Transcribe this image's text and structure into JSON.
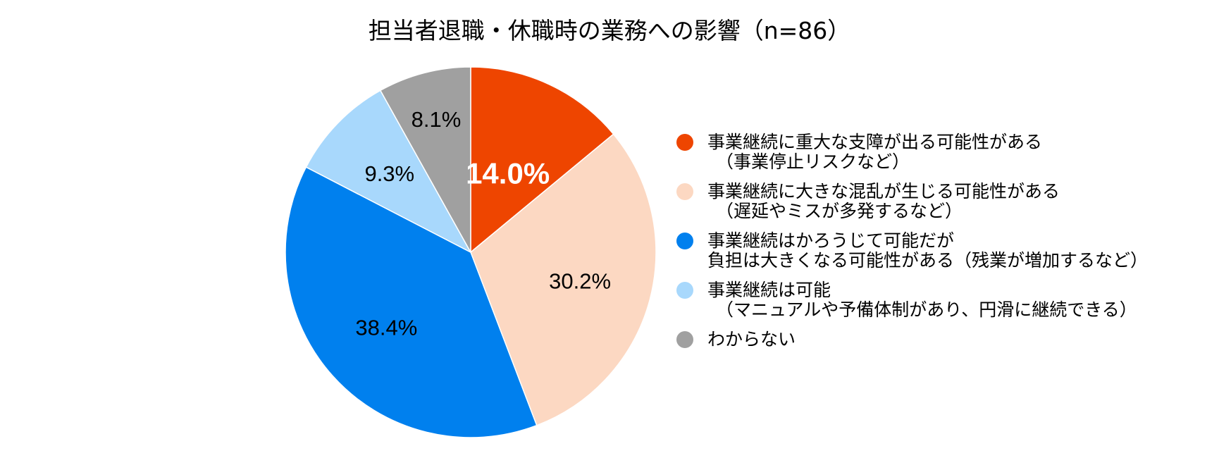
{
  "chart_data": {
    "type": "pie",
    "title": "担当者退職・休職時の業務への影響（n=86）",
    "slices": [
      {
        "label_lines": [
          "事業継続に重大な支障が出る可能性がある",
          "（事業停止リスクなど）"
        ],
        "value": 14.0,
        "value_label": "14.0%",
        "color": "#EE4500",
        "label_color": "#ffffff",
        "bold": true
      },
      {
        "label_lines": [
          "事業継続に大きな混乱が生じる可能性がある",
          "（遅延やミスが多発するなど）"
        ],
        "value": 30.2,
        "value_label": "30.2%",
        "color": "#FCD8C2",
        "label_color": "#000000",
        "bold": false
      },
      {
        "label_lines": [
          "事業継続はかろうじて可能だが",
          "負担は大きくなる可能性がある（残業が増加するなど）"
        ],
        "value": 38.4,
        "value_label": "38.4%",
        "color": "#0080EE",
        "label_color": "#000000",
        "bold": false
      },
      {
        "label_lines": [
          "事業継続は可能",
          "（マニュアルや予備体制があり、円滑に継続できる）"
        ],
        "value": 9.3,
        "value_label": "9.3%",
        "color": "#A8D8FC",
        "label_color": "#000000",
        "bold": false
      },
      {
        "label_lines": [
          "わからない"
        ],
        "value": 8.1,
        "value_label": "8.1%",
        "color": "#A0A0A0",
        "label_color": "#000000",
        "bold": false
      }
    ],
    "start_angle": "12 o'clock",
    "direction": "clockwise",
    "legend_position": "right"
  }
}
